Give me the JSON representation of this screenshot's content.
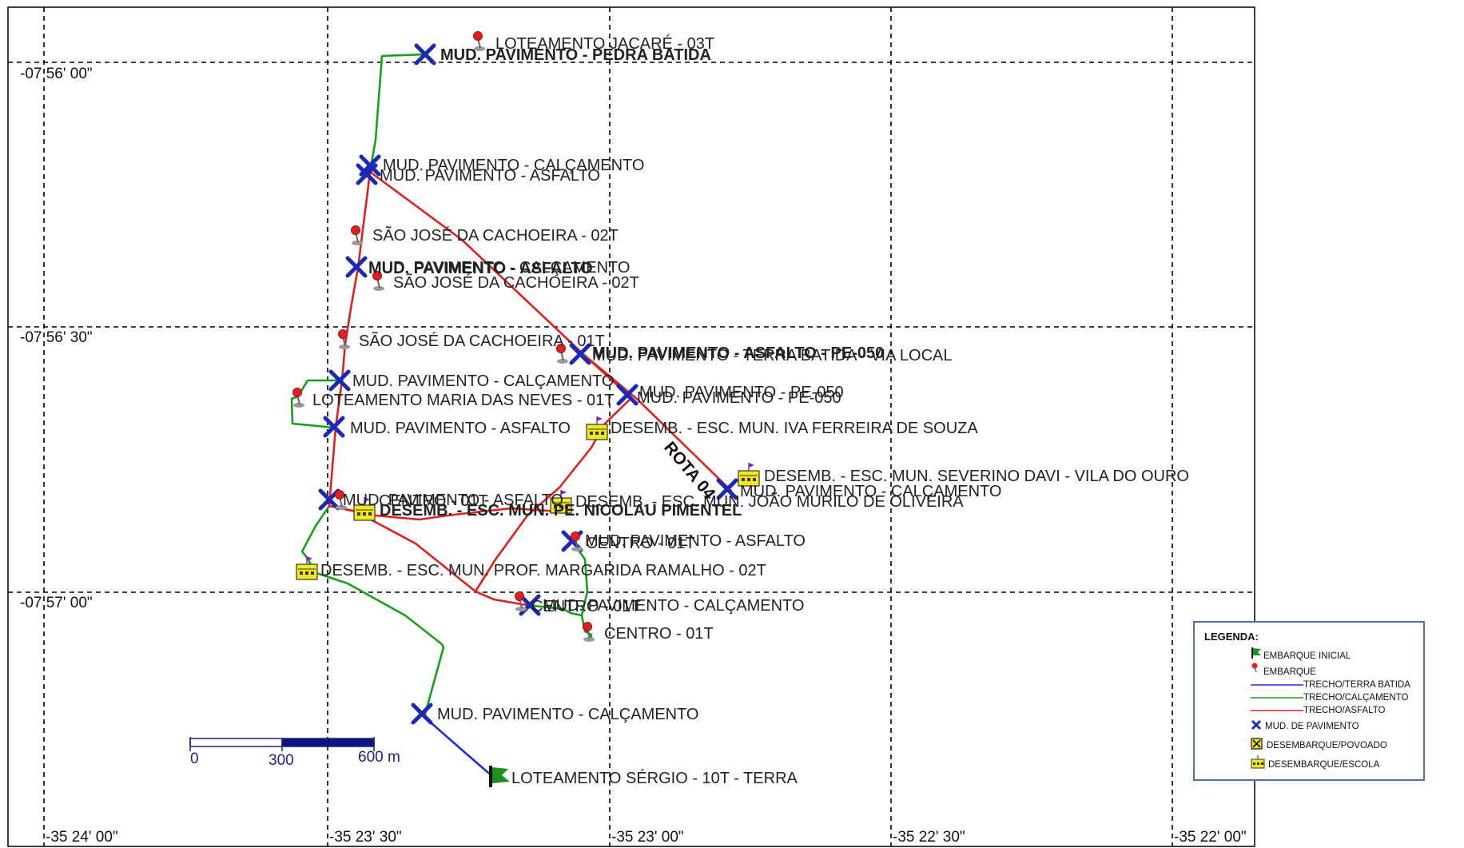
{
  "axes": {
    "lat_labels": [
      "-07 56' 00\"",
      "-07 56' 30\"",
      "-07 57' 00\""
    ],
    "lon_labels": [
      "-35 24' 00\"",
      "-35 23' 30\"",
      "-35 23' 00\"",
      "-35 22' 30\"",
      "-35 22' 00\""
    ]
  },
  "route_label": "ROTA 04",
  "scale_bar": {
    "labels": [
      "0",
      "300",
      "600 m"
    ]
  },
  "places": [
    "LOTEAMENTO JACARÉ - 03T",
    "MUD. PAVIMENTO - PEDRA BATIDA",
    "MUD. PAVIMENTO - CALÇAMENTO",
    "MUD. PAVIMENTO - ASFALTO",
    "SÃO JOSÉ DA CACHOEIRA - 02T",
    "MUD. PAVIMENTO - CALÇAMENTO",
    "MUD. PAVIMENTO - ASFALTO",
    "SÃO JOSÉ DA CACHOEIRA - 02T",
    "SÃO JOSÉ DA CACHOEIRA - 01T",
    "MUD. PAVIMENTO - ASFALTO - PE-050",
    "MUD. PAVIMENTO - TERRA BATIDA - VIA LOCAL",
    "MUD. PAVIMENTO - CALÇAMENTO",
    "LOTEAMENTO MARIA DAS NEVES - 01T",
    "MUD. PAVIMENTO - PE-050",
    "MUD. PAVIMENTO - PE-050",
    "MUD. PAVIMENTO - ASFALTO",
    "DESEMB. - ESC. MUN. IVA FERREIRA DE SOUZA",
    "DESEMB. - ESC. MUN. SEVERINO DAVI - VILA DO OURO",
    "MUD. PAVIMENTO - CALÇAMENTO",
    "MUD. PAVIMENTO - ASFALTO",
    "CENTRO - 01T",
    "DESEMB. - ESC. MUN. PE. NICOLAU PIMENTEL",
    "DESEMB. - ESC. MUN. JOÃO MURILO DE OLIVEIRA",
    "MUD. PAVIMENTO - ASFALTO",
    "CENTRO - 01T",
    "DESEMB. - ESC. MUN. PROF. MARGARIDA RAMALHO - 02T",
    "MUD. PAVIMENTO - CALÇAMENTO",
    "CENTRO - 01T",
    "CENTRO - 01T",
    "MUD. PAVIMENTO - CALÇAMENTO",
    "LOTEAMENTO SÉRGIO - 10T - TERRA"
  ],
  "legend": {
    "title": "LEGENDA:",
    "items": [
      "EMBARQUE INICIAL",
      "EMBARQUE",
      "TRECHO/TERRA BATIDA",
      "TRECHO/CALÇAMENTO",
      "TRECHO/ASFALTO",
      "MUD. DE PAVIMENTO",
      "DESEMBARQUE/POVOADO",
      "DESEMBARQUE/ESCOLA"
    ]
  },
  "colors": {
    "terra_batida": "#1f2fd6",
    "calcamento": "#18a018",
    "asfalto": "#e02020",
    "mud_pavimento": "#1a2ab8",
    "school_fill": "#f2e81c",
    "flag": "#1f8f1f",
    "pin": "#e02020"
  },
  "icons": [
    "flag-icon",
    "pin-icon",
    "x-mark-icon",
    "school-icon",
    "village-icon"
  ]
}
